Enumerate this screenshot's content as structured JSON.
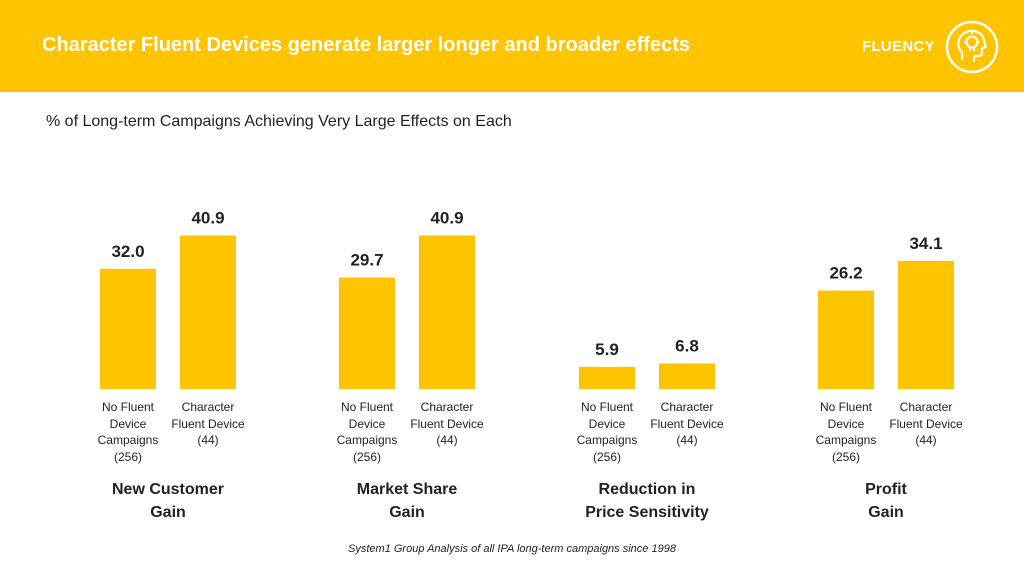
{
  "header": {
    "title": "Character Fluent Devices generate larger longer and broader effects",
    "brand": "FLUENCY",
    "accent": "#FFC400"
  },
  "subtitle": "% of Long-term Campaigns Achieving Very Large Effects on Each",
  "chart_data": {
    "type": "bar",
    "title": "% of Long-term Campaigns Achieving Very Large Effects on Each",
    "xlabel": "",
    "ylabel": "",
    "ylim": [
      0,
      45
    ],
    "grid": false,
    "bar_color": "#FFC400",
    "groups": [
      {
        "label_lines": [
          "New Customer",
          "Gain"
        ],
        "bars": [
          {
            "value": 32.0,
            "display": "32.0",
            "label_lines": [
              "No Fluent",
              "Device",
              "Campaigns",
              "(256)"
            ]
          },
          {
            "value": 40.9,
            "display": "40.9",
            "label_lines": [
              "Character",
              "Fluent Device",
              "(44)"
            ]
          }
        ]
      },
      {
        "label_lines": [
          "Market Share",
          "Gain"
        ],
        "bars": [
          {
            "value": 29.7,
            "display": "29.7",
            "label_lines": [
              "No Fluent",
              "Device",
              "Campaigns",
              "(256)"
            ]
          },
          {
            "value": 40.9,
            "display": "40.9",
            "label_lines": [
              "Character",
              "Fluent Device",
              "(44)"
            ]
          }
        ]
      },
      {
        "label_lines": [
          "Reduction in",
          "Price Sensitivity"
        ],
        "bars": [
          {
            "value": 5.9,
            "display": "5.9",
            "label_lines": [
              "No Fluent",
              "Device",
              "Campaigns",
              "(256)"
            ]
          },
          {
            "value": 6.8,
            "display": "6.8",
            "label_lines": [
              "Character",
              "Fluent Device",
              "(44)"
            ]
          }
        ]
      },
      {
        "label_lines": [
          "Profit",
          "Gain"
        ],
        "bars": [
          {
            "value": 26.2,
            "display": "26.2",
            "label_lines": [
              "No Fluent",
              "Device",
              "Campaigns",
              "(256)"
            ]
          },
          {
            "value": 34.1,
            "display": "34.1",
            "label_lines": [
              "Character",
              "Fluent Device",
              "(44)"
            ]
          }
        ]
      }
    ]
  },
  "source": "System1 Group Analysis of all IPA long-term campaigns since 1998"
}
